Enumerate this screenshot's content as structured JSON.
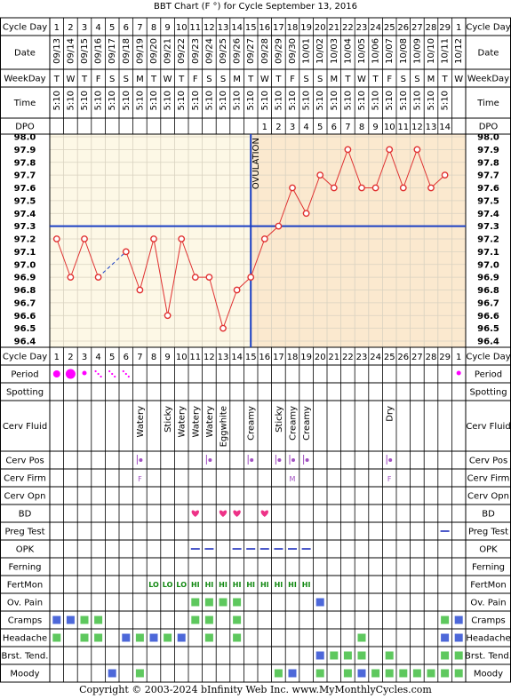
{
  "title": "BBT Chart (F °) for Cycle September 13, 2016",
  "footer": "Copyright © 2003-2024 bInfinity Web Inc.     www.MyMonthlyCycles.com",
  "row_labels": {
    "cycle_day": "Cycle Day",
    "date": "Date",
    "weekday": "WeekDay",
    "time": "Time",
    "dpo": "DPO",
    "period": "Period",
    "spotting": "Spotting",
    "cerv_fluid": "Cerv Fluid",
    "cerv_pos": "Cerv Pos",
    "cerv_firm": "Cerv Firm",
    "cerv_opn": "Cerv Opn",
    "bd": "BD",
    "preg_test": "Preg Test",
    "opk": "OPK",
    "ferning": "Ferning",
    "fertmon": "FertMon",
    "ov_pain": "Ov. Pain",
    "cramps": "Cramps",
    "headache": "Headache",
    "brst_tend": "Brst. Tend.",
    "moody": "Moody"
  },
  "ovulation_label": "OVULATION",
  "colors": {
    "pre_bg": "#fdf8e6",
    "post_bg": "#fbe9cf",
    "grid": "#d9d2c0",
    "line": "#e03030",
    "coverline": "#1a3fc4",
    "period": "#ff00ff",
    "green": "#5ec85e",
    "blue": "#4d68d9",
    "heart": "#ee3388",
    "fertmon": "#118811",
    "opk": "#4d5ac9"
  },
  "days": {
    "cycle_day": [
      "1",
      "2",
      "3",
      "4",
      "5",
      "6",
      "7",
      "8",
      "9",
      "10",
      "11",
      "12",
      "13",
      "14",
      "15",
      "16",
      "17",
      "18",
      "19",
      "20",
      "21",
      "22",
      "23",
      "24",
      "25",
      "26",
      "27",
      "28",
      "29",
      "1"
    ],
    "dates": [
      "09/13",
      "09/14",
      "09/15",
      "09/16",
      "09/17",
      "09/18",
      "09/19",
      "09/20",
      "09/21",
      "09/22",
      "09/23",
      "09/24",
      "09/25",
      "09/26",
      "09/27",
      "09/28",
      "09/29",
      "09/30",
      "10/01",
      "10/02",
      "10/03",
      "10/04",
      "10/05",
      "10/06",
      "10/07",
      "10/08",
      "10/09",
      "10/10",
      "10/11",
      "10/12"
    ],
    "weekday": [
      "T",
      "W",
      "T",
      "F",
      "S",
      "S",
      "M",
      "T",
      "W",
      "T",
      "F",
      "S",
      "S",
      "M",
      "T",
      "W",
      "T",
      "F",
      "S",
      "S",
      "M",
      "T",
      "W",
      "T",
      "F",
      "S",
      "S",
      "M",
      "T",
      "W"
    ],
    "time": [
      "5:10",
      "5:10",
      "5:10",
      "5:10",
      "5:10",
      "5:10",
      "5:10",
      "5:10",
      "5:10",
      "5:10",
      "5:10",
      "5:10",
      "5:10",
      "5:10",
      "5:10",
      "5:10",
      "5:10",
      "5:10",
      "5:10",
      "5:10",
      "5:10",
      "5:10",
      "5:10",
      "5:10",
      "5:10",
      "5:10",
      "5:10",
      "5:10",
      "5:10",
      ""
    ],
    "dpo": [
      "",
      "",
      "",
      "",
      "",
      "",
      "",
      "",
      "",
      "",
      "",
      "",
      "",
      "",
      "",
      "1",
      "2",
      "3",
      "4",
      "5",
      "6",
      "7",
      "8",
      "9",
      "10",
      "11",
      "12",
      "13",
      "14",
      ""
    ]
  },
  "chart_data": {
    "type": "line",
    "x": [
      1,
      2,
      3,
      4,
      5,
      6,
      7,
      8,
      9,
      10,
      11,
      12,
      13,
      14,
      15,
      16,
      17,
      18,
      19,
      20,
      21,
      22,
      23,
      24,
      25,
      26,
      27,
      28,
      29,
      30
    ],
    "temps": [
      97.2,
      96.9,
      97.2,
      96.9,
      null,
      97.1,
      96.8,
      97.2,
      96.6,
      97.2,
      96.9,
      96.9,
      96.5,
      96.8,
      96.9,
      97.2,
      97.3,
      97.6,
      97.4,
      97.7,
      97.6,
      97.9,
      97.6,
      97.6,
      97.9,
      97.6,
      97.9,
      97.6,
      97.7,
      null
    ],
    "dashed_segment": [
      4,
      6
    ],
    "ylim": [
      96.4,
      98.0
    ],
    "y_ticks": [
      "98.0",
      "97.9",
      "97.8",
      "97.7",
      "97.6",
      "97.5",
      "97.4",
      "97.3",
      "97.2",
      "97.1",
      "97.0",
      "96.9",
      "96.8",
      "96.7",
      "96.6",
      "96.5",
      "96.4"
    ],
    "coverline": 97.3,
    "ovulation_day": 15
  },
  "symptoms": {
    "period": [
      [
        "1",
        "big"
      ],
      [
        "2",
        "big"
      ],
      [
        "3",
        "small"
      ],
      [
        "4",
        "dots"
      ],
      [
        "5",
        "dots"
      ],
      [
        "6",
        "dots"
      ],
      [
        "30",
        "small"
      ]
    ],
    "cerv_fluid": [
      [
        "7",
        "Watery"
      ],
      [
        "9",
        "Sticky"
      ],
      [
        "10",
        "Watery"
      ],
      [
        "11",
        "Watery"
      ],
      [
        "12",
        "Watery"
      ],
      [
        "13",
        "Eggwhite"
      ],
      [
        "15",
        "Creamy"
      ],
      [
        "17",
        "Sticky"
      ],
      [
        "18",
        "Creamy"
      ],
      [
        "19",
        "Creamy"
      ],
      [
        "25",
        "Dry"
      ]
    ],
    "cerv_pos": [
      "7",
      "12",
      "15",
      "17",
      "18",
      "19",
      "25"
    ],
    "cerv_firm": [
      [
        "7",
        "F"
      ],
      [
        "18",
        "M"
      ],
      [
        "25",
        "F"
      ]
    ],
    "bd": [
      "11",
      "13",
      "14",
      "16"
    ],
    "preg_test": [
      "29"
    ],
    "opk": [
      "11",
      "12",
      "14",
      "15",
      "16",
      "17",
      "18",
      "19"
    ],
    "fertmon": [
      [
        "8",
        "LO"
      ],
      [
        "9",
        "LO"
      ],
      [
        "10",
        "LO"
      ],
      [
        "11",
        "HI"
      ],
      [
        "12",
        "HI"
      ],
      [
        "13",
        "HI"
      ],
      [
        "14",
        "HI"
      ],
      [
        "15",
        "HI"
      ],
      [
        "16",
        "HI"
      ],
      [
        "17",
        "HI"
      ],
      [
        "18",
        "HI"
      ],
      [
        "19",
        "HI"
      ]
    ],
    "ov_pain": [
      [
        "11",
        "green"
      ],
      [
        "12",
        "green"
      ],
      [
        "13",
        "green"
      ],
      [
        "14",
        "green"
      ],
      [
        "20",
        "blue"
      ]
    ],
    "cramps": [
      [
        "1",
        "blue"
      ],
      [
        "2",
        "blue"
      ],
      [
        "3",
        "green"
      ],
      [
        "4",
        "green"
      ],
      [
        "11",
        "green"
      ],
      [
        "12",
        "green"
      ],
      [
        "14",
        "green"
      ],
      [
        "29",
        "green"
      ],
      [
        "30",
        "blue"
      ]
    ],
    "headache": [
      [
        "1",
        "green"
      ],
      [
        "3",
        "green"
      ],
      [
        "4",
        "green"
      ],
      [
        "6",
        "blue"
      ],
      [
        "7",
        "green"
      ],
      [
        "8",
        "blue"
      ],
      [
        "9",
        "green"
      ],
      [
        "10",
        "blue"
      ],
      [
        "12",
        "green"
      ],
      [
        "14",
        "green"
      ],
      [
        "23",
        "green"
      ],
      [
        "29",
        "blue"
      ],
      [
        "30",
        "blue"
      ]
    ],
    "brst_tend": [
      [
        "20",
        "blue"
      ],
      [
        "21",
        "green"
      ],
      [
        "22",
        "green"
      ],
      [
        "23",
        "green"
      ],
      [
        "25",
        "green"
      ],
      [
        "29",
        "green"
      ],
      [
        "30",
        "green"
      ]
    ],
    "moody": [
      [
        "5",
        "blue"
      ],
      [
        "7",
        "green"
      ],
      [
        "17",
        "green"
      ],
      [
        "18",
        "blue"
      ],
      [
        "20",
        "green"
      ],
      [
        "22",
        "green"
      ],
      [
        "23",
        "blue"
      ],
      [
        "24",
        "green"
      ],
      [
        "25",
        "green"
      ],
      [
        "26",
        "green"
      ],
      [
        "27",
        "green"
      ],
      [
        "28",
        "green"
      ],
      [
        "29",
        "green"
      ],
      [
        "30",
        "green"
      ]
    ]
  }
}
